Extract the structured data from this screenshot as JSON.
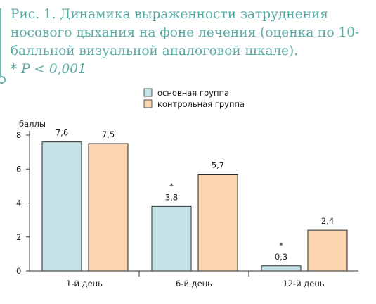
{
  "caption": {
    "text": "Рис. 1. Динамика выраженности затруднения носового дыхания на фоне лечения (оценка по 10-балльной визуальной аналоговой шкале).",
    "note": "* P < 0,001"
  },
  "chart_data": {
    "type": "bar",
    "ylabel": "баллы",
    "ylim": [
      0,
      8
    ],
    "yticks": [
      "0",
      "2",
      "4",
      "6",
      "8"
    ],
    "categories": [
      "1-й день",
      "6-й день",
      "12-й день"
    ],
    "series": [
      {
        "name": "основная группа",
        "color": "#c3e1e6",
        "values": [
          7.6,
          3.8,
          0.3
        ],
        "labels": [
          "7,6",
          "3,8",
          "0,3"
        ],
        "marks": [
          "",
          "*",
          "*"
        ]
      },
      {
        "name": "контрольная группа",
        "color": "#fbd5b0",
        "values": [
          7.5,
          5.7,
          2.4
        ],
        "labels": [
          "7,5",
          "5,7",
          "2,4"
        ],
        "marks": [
          "",
          "",
          ""
        ]
      }
    ],
    "legend_position": "top",
    "grid": false
  }
}
